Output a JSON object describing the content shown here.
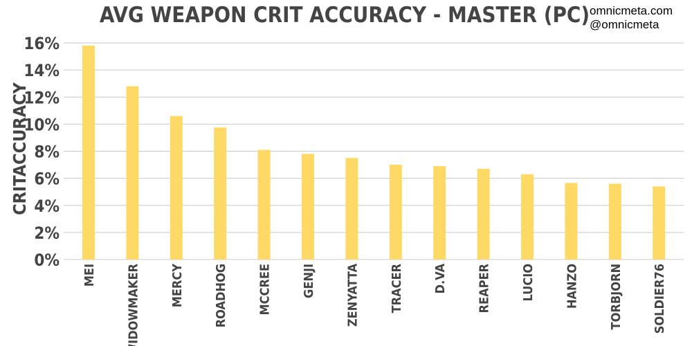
{
  "credits": {
    "site": "omnicmeta.com",
    "handle": "@omnicmeta"
  },
  "chart_data": {
    "type": "bar",
    "title": "AVG WEAPON CRIT ACCURACY - MASTER (PC)",
    "xlabel": "",
    "ylabel": "CRITACCURACY",
    "ylim": [
      0,
      16
    ],
    "yticks": [
      "0%",
      "2%",
      "4%",
      "6%",
      "8%",
      "10%",
      "12%",
      "14%",
      "16%"
    ],
    "grid": true,
    "bar_color": "#ffd966",
    "categories": [
      "MEI",
      "WIDOWMAKER",
      "MERCY",
      "ROADHOG",
      "MCCREE",
      "GENJI",
      "ZENYATTA",
      "TRACER",
      "D.VA",
      "REAPER",
      "LUCIO",
      "HANZO",
      "TORBJORN",
      "SOLDIER76"
    ],
    "values": [
      15.8,
      12.8,
      10.6,
      9.75,
      8.1,
      7.8,
      7.5,
      7.0,
      6.9,
      6.7,
      6.3,
      5.65,
      5.6,
      5.4
    ]
  }
}
